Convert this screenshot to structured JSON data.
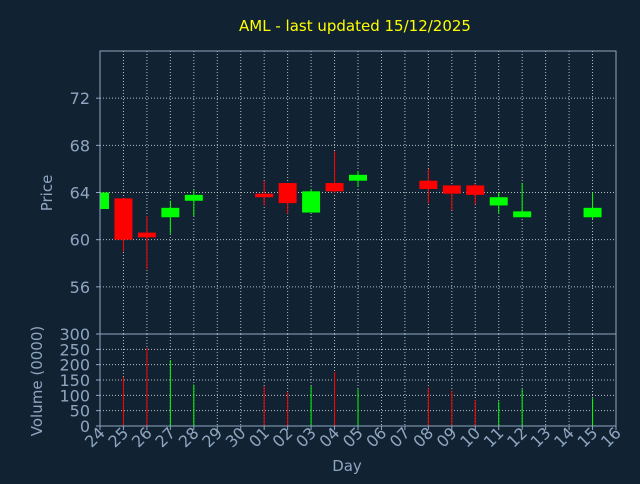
{
  "colors": {
    "background": "#112233",
    "grid": "#ffffff",
    "axis": "#8fa6c0",
    "title": "#ffff00",
    "up": "#00ff00",
    "down": "#ff0000"
  },
  "chart_data": [
    {
      "type": "candlestick",
      "title": "AML - last updated 15/12/2025",
      "ylabel": "Price",
      "ylim": [
        52,
        76
      ],
      "yticks": [
        56,
        60,
        64,
        68,
        72
      ],
      "grid": true,
      "candles": [
        {
          "day": "24",
          "open": 62.6,
          "high": 64.0,
          "low": 62.6,
          "close": 64.0
        },
        {
          "day": "25",
          "open": 63.5,
          "high": 63.5,
          "low": 59.0,
          "close": 60.0
        },
        {
          "day": "26",
          "open": 60.6,
          "high": 62.0,
          "low": 57.5,
          "close": 60.2
        },
        {
          "day": "27",
          "open": 61.9,
          "high": 63.3,
          "low": 60.5,
          "close": 62.7
        },
        {
          "day": "28",
          "open": 63.3,
          "high": 64.2,
          "low": 62.0,
          "close": 63.8
        },
        {
          "day": "01",
          "open": 63.9,
          "high": 65.0,
          "low": 62.9,
          "close": 63.6
        },
        {
          "day": "02",
          "open": 64.8,
          "high": 64.8,
          "low": 62.2,
          "close": 63.1
        },
        {
          "day": "03",
          "open": 62.3,
          "high": 64.3,
          "low": 62.3,
          "close": 64.1
        },
        {
          "day": "04",
          "open": 64.8,
          "high": 67.5,
          "low": 64.0,
          "close": 64.1
        },
        {
          "day": "05",
          "open": 65.0,
          "high": 65.8,
          "low": 64.5,
          "close": 65.5
        },
        {
          "day": "08",
          "open": 65.0,
          "high": 66.0,
          "low": 63.1,
          "close": 64.3
        },
        {
          "day": "09",
          "open": 64.6,
          "high": 64.6,
          "low": 62.5,
          "close": 63.9
        },
        {
          "day": "10",
          "open": 64.6,
          "high": 64.7,
          "low": 63.0,
          "close": 63.8
        },
        {
          "day": "11",
          "open": 62.9,
          "high": 64.0,
          "low": 62.2,
          "close": 63.6
        },
        {
          "day": "12",
          "open": 61.9,
          "high": 64.8,
          "low": 61.9,
          "close": 62.4
        },
        {
          "day": "15",
          "open": 61.9,
          "high": 64.0,
          "low": 61.7,
          "close": 62.7
        }
      ]
    },
    {
      "type": "bar",
      "xlabel": "Day",
      "ylabel": "Volume (0000)",
      "ylim": [
        0,
        300
      ],
      "yticks": [
        0,
        50,
        100,
        150,
        200,
        250,
        300
      ],
      "categories": [
        "24",
        "25",
        "26",
        "27",
        "28",
        "29",
        "30",
        "01",
        "02",
        "03",
        "04",
        "05",
        "06",
        "07",
        "08",
        "09",
        "10",
        "11",
        "12",
        "13",
        "14",
        "15",
        "16"
      ],
      "volumes": [
        {
          "day": "25",
          "value": 160,
          "dir": "down"
        },
        {
          "day": "26",
          "value": 255,
          "dir": "down"
        },
        {
          "day": "27",
          "value": 215,
          "dir": "up"
        },
        {
          "day": "28",
          "value": 135,
          "dir": "up"
        },
        {
          "day": "01",
          "value": 130,
          "dir": "down"
        },
        {
          "day": "02",
          "value": 110,
          "dir": "down"
        },
        {
          "day": "03",
          "value": 130,
          "dir": "up"
        },
        {
          "day": "04",
          "value": 175,
          "dir": "down"
        },
        {
          "day": "05",
          "value": 120,
          "dir": "up"
        },
        {
          "day": "08",
          "value": 125,
          "dir": "down"
        },
        {
          "day": "09",
          "value": 115,
          "dir": "down"
        },
        {
          "day": "10",
          "value": 85,
          "dir": "down"
        },
        {
          "day": "11",
          "value": 80,
          "dir": "up"
        },
        {
          "day": "12",
          "value": 120,
          "dir": "up"
        },
        {
          "day": "15",
          "value": 90,
          "dir": "up"
        }
      ]
    }
  ]
}
